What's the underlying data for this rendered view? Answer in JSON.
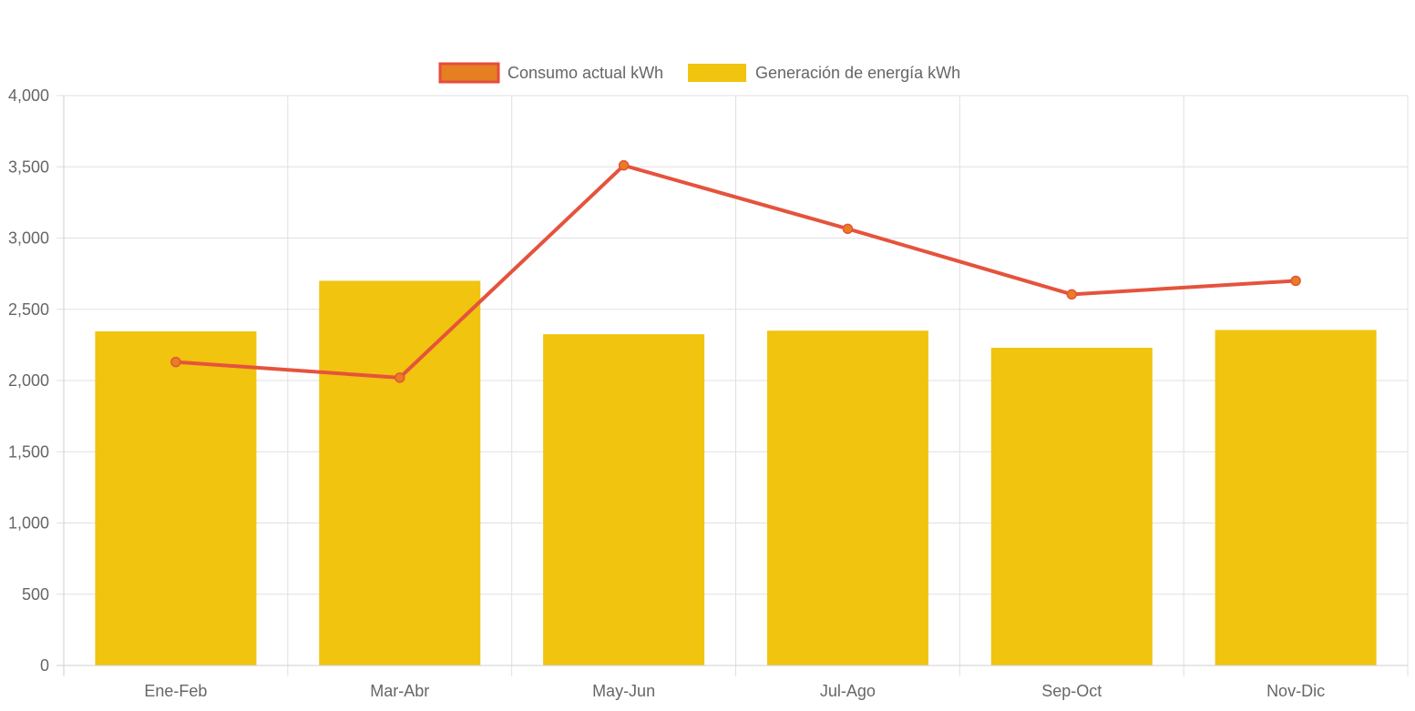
{
  "chart_data": {
    "type": "bar",
    "categories": [
      "Ene-Feb",
      "Mar-Abr",
      "May-Jun",
      "Jul-Ago",
      "Sep-Oct",
      "Nov-Dic"
    ],
    "series": [
      {
        "name": "Consumo actual kWh",
        "type": "line",
        "values": [
          2130,
          2020,
          3510,
          3065,
          2605,
          2700
        ],
        "color": "#e5533d",
        "point_fill": "#e67e22"
      },
      {
        "name": "Generación de energía kWh",
        "type": "bar",
        "values": [
          2345,
          2700,
          2325,
          2350,
          2230,
          2355
        ],
        "color": "#f1c40f"
      }
    ],
    "ylim": [
      0,
      4000
    ],
    "ytick_step": 500,
    "yticks": [
      "0",
      "500",
      "1,000",
      "1,500",
      "2,000",
      "2,500",
      "3,000",
      "3,500",
      "4,000"
    ],
    "grid": true,
    "legend": "top-center",
    "title": "",
    "xlabel": "",
    "ylabel": ""
  }
}
